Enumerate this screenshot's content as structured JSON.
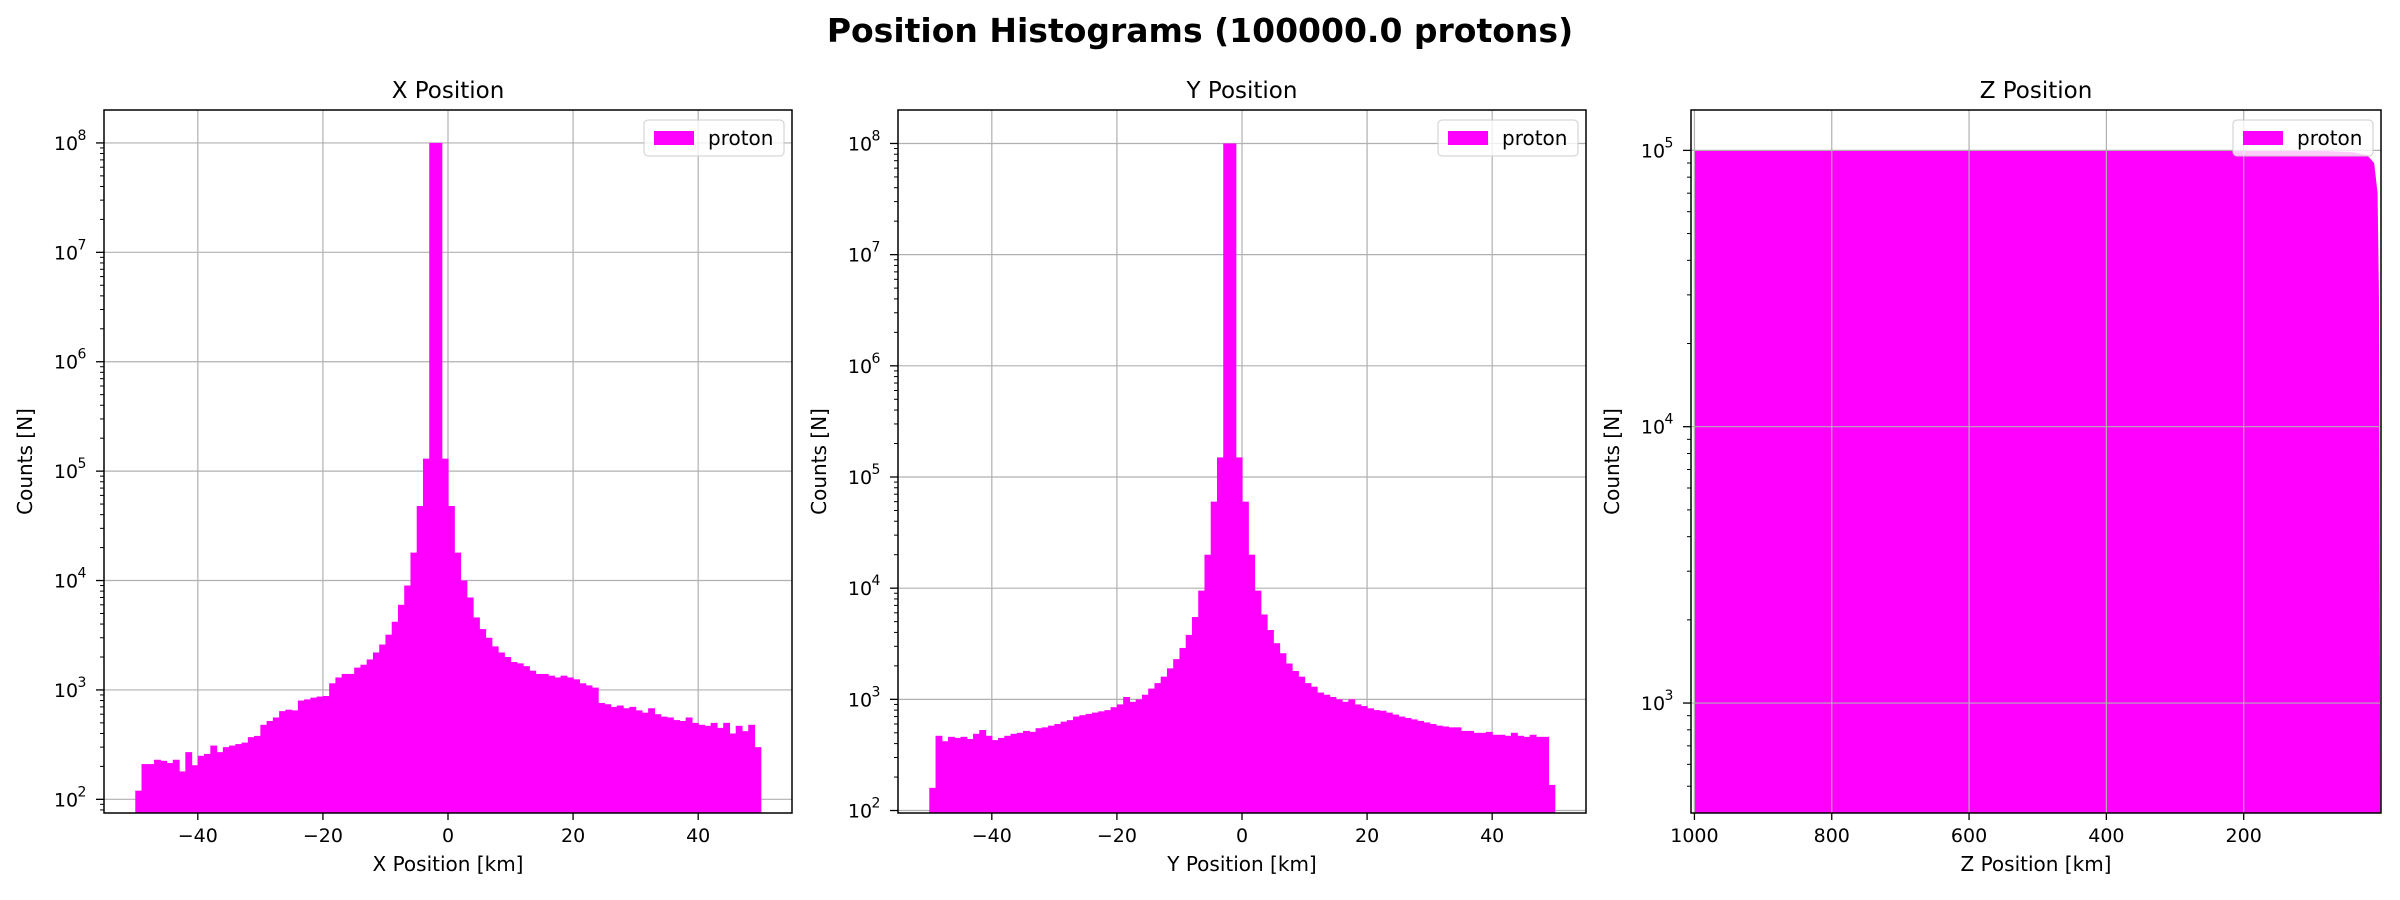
{
  "figure": {
    "suptitle": "Position Histograms (100000.0 protons)",
    "color": "#ff00ff"
  },
  "chart_data": [
    {
      "type": "bar",
      "title": "X Position",
      "xlabel": "X Position [km]",
      "ylabel": "Counts [N]",
      "yscale": "log",
      "xlim": [
        -55,
        55
      ],
      "ylim": [
        75,
        200000000
      ],
      "xticks": [
        -40,
        -20,
        0,
        20,
        40
      ],
      "xtick_labels": [
        "−40",
        "−20",
        "0",
        "20",
        "40"
      ],
      "yticks": [
        100,
        1000,
        10000,
        100000,
        1000000,
        10000000,
        100000000
      ],
      "ytick_labels": [
        "10",
        "10",
        "10",
        "10",
        "10",
        "10",
        "10"
      ],
      "ytick_exponents": [
        "2",
        "3",
        "4",
        "5",
        "6",
        "7",
        "8"
      ],
      "grid": true,
      "legend": {
        "position": "top-right",
        "entries": [
          "proton"
        ]
      },
      "bin_range": [
        -50,
        50
      ],
      "series": [
        {
          "name": "proton",
          "values": [
            120,
            210,
            210,
            230,
            225,
            215,
            230,
            180,
            270,
            205,
            250,
            260,
            310,
            270,
            300,
            310,
            320,
            330,
            370,
            380,
            480,
            520,
            560,
            640,
            660,
            650,
            800,
            820,
            850,
            870,
            880,
            1150,
            1300,
            1400,
            1400,
            1600,
            1700,
            1900,
            2200,
            2600,
            3200,
            4200,
            6000,
            9000,
            18000,
            48000,
            130000,
            100000000,
            100000000,
            130000,
            48000,
            18000,
            10000,
            7000,
            4600,
            3600,
            3000,
            2500,
            2200,
            2000,
            1800,
            1750,
            1650,
            1500,
            1400,
            1400,
            1350,
            1300,
            1350,
            1300,
            1250,
            1150,
            1100,
            1050,
            760,
            740,
            700,
            720,
            680,
            700,
            650,
            620,
            680,
            600,
            570,
            560,
            530,
            520,
            560,
            500,
            480,
            470,
            500,
            450,
            500,
            400,
            470,
            420,
            480,
            300
          ]
        }
      ]
    },
    {
      "type": "bar",
      "title": "Y Position",
      "xlabel": "Y Position [km]",
      "ylabel": "Counts [N]",
      "yscale": "log",
      "xlim": [
        -55,
        55
      ],
      "ylim": [
        95,
        200000000
      ],
      "xticks": [
        -40,
        -20,
        0,
        20,
        40
      ],
      "xtick_labels": [
        "−40",
        "−20",
        "0",
        "20",
        "40"
      ],
      "yticks": [
        100,
        1000,
        10000,
        100000,
        1000000,
        10000000,
        100000000
      ],
      "ytick_labels": [
        "10",
        "10",
        "10",
        "10",
        "10",
        "10",
        "10"
      ],
      "ytick_exponents": [
        "2",
        "3",
        "4",
        "5",
        "6",
        "7",
        "8"
      ],
      "grid": true,
      "legend": {
        "position": "top-right",
        "entries": [
          "proton"
        ]
      },
      "bin_range": [
        -50,
        50
      ],
      "series": [
        {
          "name": "proton",
          "values": [
            160,
            470,
            420,
            460,
            450,
            460,
            440,
            490,
            530,
            470,
            430,
            450,
            470,
            490,
            500,
            520,
            510,
            550,
            560,
            580,
            600,
            630,
            650,
            700,
            720,
            740,
            760,
            780,
            800,
            850,
            900,
            1050,
            950,
            1000,
            1100,
            1250,
            1400,
            1600,
            1900,
            2300,
            2900,
            3800,
            5500,
            9500,
            20000,
            60000,
            150000,
            100000000,
            100000000,
            150000,
            60000,
            20000,
            9500,
            5800,
            4200,
            3200,
            2600,
            2100,
            1800,
            1600,
            1400,
            1300,
            1150,
            1100,
            1050,
            1000,
            950,
            1000,
            900,
            870,
            830,
            800,
            790,
            760,
            730,
            700,
            680,
            660,
            640,
            620,
            600,
            580,
            570,
            560,
            560,
            520,
            520,
            500,
            500,
            510,
            480,
            480,
            470,
            500,
            470,
            460,
            480,
            460,
            460,
            170
          ]
        }
      ]
    },
    {
      "type": "bar",
      "title": "Z Position",
      "xlabel": "Z Position [km]",
      "ylabel": "Counts [N]",
      "yscale": "log",
      "xlim": [
        1005,
        0
      ],
      "ylim": [
        400,
        140000
      ],
      "xticks": [
        1000,
        800,
        600,
        400,
        200
      ],
      "xtick_labels": [
        "1000",
        "800",
        "600",
        "400",
        "200"
      ],
      "yticks": [
        1000,
        10000,
        100000
      ],
      "ytick_labels": [
        "10",
        "10",
        "10"
      ],
      "ytick_exponents": [
        "3",
        "4",
        "5"
      ],
      "grid": true,
      "legend": {
        "position": "top-right",
        "entries": [
          "proton"
        ]
      },
      "bin_range": [
        1000,
        0
      ],
      "series": [
        {
          "name": "proton",
          "profile": [
            [
              1000,
              100000
            ],
            [
              150,
              100000
            ],
            [
              80,
              99500
            ],
            [
              40,
              98500
            ],
            [
              20,
              96000
            ],
            [
              10,
              90000
            ],
            [
              5,
              70000
            ],
            [
              3,
              30000
            ],
            [
              2,
              4000
            ],
            [
              1,
              400
            ]
          ]
        }
      ]
    }
  ]
}
